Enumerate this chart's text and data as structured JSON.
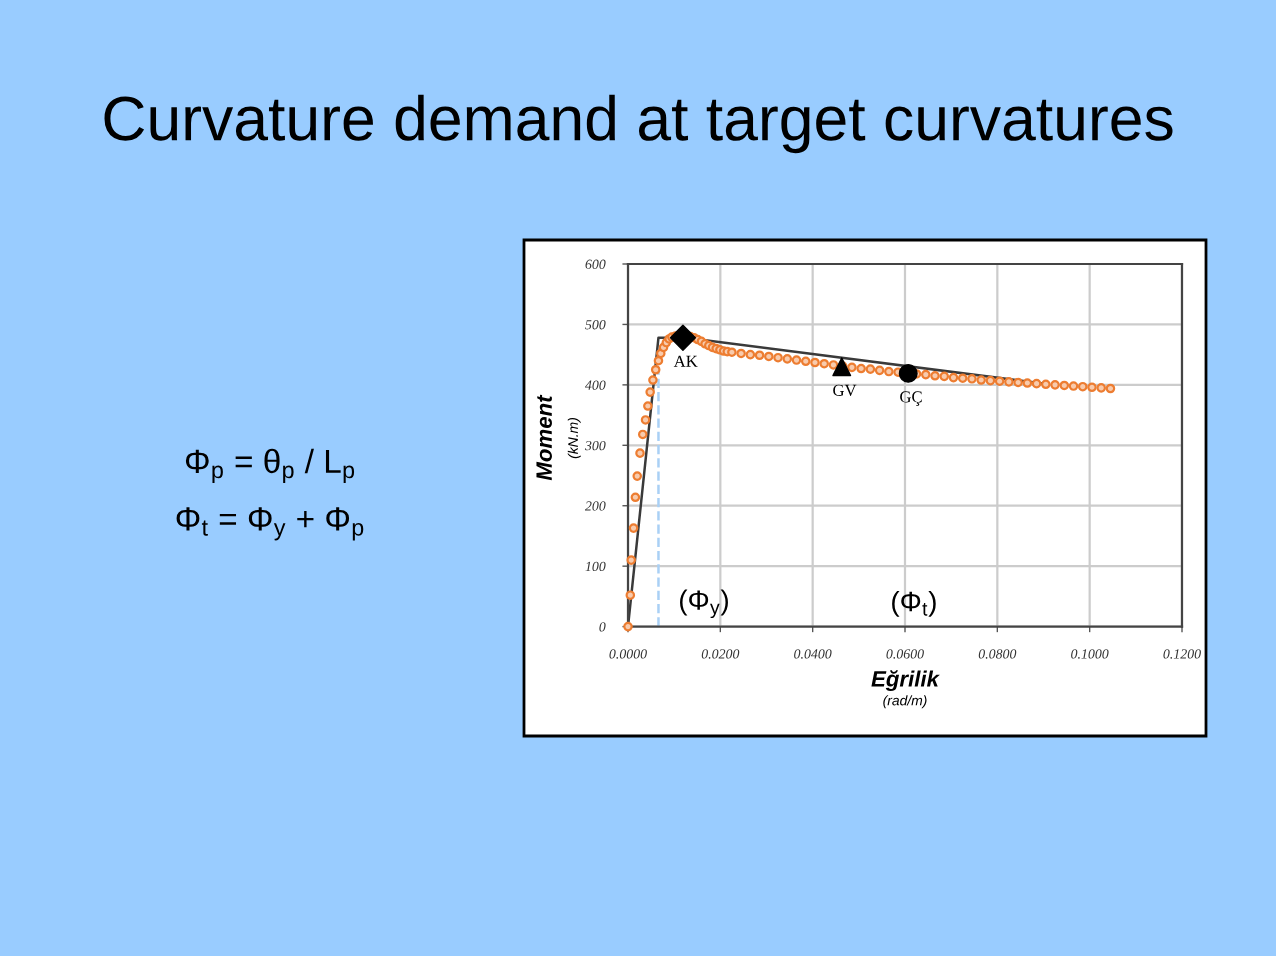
{
  "chart_data": {
    "type": "scatter",
    "title": "Curvature demand at target curvatures",
    "xlabel": "Eğrilik\n(rad/m)",
    "ylabel": "Moment\n(kN.m)",
    "xlim": [
      0,
      0.12
    ],
    "ylim": [
      0,
      600
    ],
    "xticks": [
      {
        "value": 0,
        "label": "0.0000"
      },
      {
        "value": 0.02,
        "label": "0.0200"
      },
      {
        "value": 0.04,
        "label": "0.0400"
      },
      {
        "value": 0.06,
        "label": "0.0600"
      },
      {
        "value": 0.08,
        "label": "0.0800"
      },
      {
        "value": 0.1,
        "label": "0.1000"
      },
      {
        "value": 0.12,
        "label": "0.1200"
      }
    ],
    "yticks": [
      0,
      100,
      200,
      300,
      400,
      500,
      600
    ],
    "grid": true,
    "series": [
      {
        "color": "#ed7d31",
        "marker": "circle",
        "x": [
          0,
          0.0005,
          0.0007,
          0.0012,
          0.0016,
          0.002,
          0.0026,
          0.0032,
          0.0038,
          0.0043,
          0.0048,
          0.0054,
          0.006,
          0.0066,
          0.0071,
          0.0077,
          0.0083,
          0.0089,
          0.0095,
          0.0103,
          0.0135,
          0.0143,
          0.0151,
          0.0159,
          0.0167,
          0.0175,
          0.0183,
          0.0191,
          0.0199,
          0.0207,
          0.0215,
          0.0225,
          0.0245,
          0.0265,
          0.0285,
          0.0305,
          0.0325,
          0.0345,
          0.0365,
          0.0385,
          0.0405,
          0.0425,
          0.0445,
          0.0465,
          0.0485,
          0.0505,
          0.0525,
          0.0545,
          0.0565,
          0.0585,
          0.0625,
          0.0645,
          0.0665,
          0.0685,
          0.0705,
          0.0725,
          0.0745,
          0.0765,
          0.0785,
          0.0805,
          0.0825,
          0.0845,
          0.0865,
          0.0885,
          0.0905,
          0.0925,
          0.0945,
          0.0965,
          0.0985,
          0.1005,
          0.1025,
          0.1045
        ],
        "values": [
          0,
          52,
          110,
          163,
          214,
          249,
          287,
          318,
          342,
          365,
          388,
          408,
          425,
          440,
          452,
          462,
          470,
          476,
          479,
          481,
          480,
          478,
          475,
          472,
          468,
          465,
          462,
          460,
          458,
          456,
          455,
          454,
          452,
          450,
          449,
          447,
          445,
          443,
          441,
          439,
          437,
          435,
          433,
          431,
          429,
          427,
          426,
          424,
          422,
          421,
          418,
          417,
          415,
          414,
          412,
          411,
          410,
          408,
          407,
          406,
          405,
          404,
          403,
          402,
          401,
          400,
          399,
          398,
          397,
          396,
          395,
          394
        ]
      },
      {
        "type": "line",
        "color": "#3a3a3a",
        "marker": "none",
        "line_style": "solid",
        "x": [
          0,
          0.0066,
          0.0125,
          0.09
        ],
        "values": [
          0,
          478,
          478,
          402
        ]
      },
      {
        "type": "line",
        "color": "#a9d0f5",
        "marker": "none",
        "line_style": "dashed",
        "x": [
          0.0066,
          0.0066
        ],
        "values": [
          0,
          430
        ]
      },
      {
        "color": "#000000",
        "marker": "diamond",
        "x": [
          0.0119
        ],
        "values": [
          478
        ]
      },
      {
        "color": "#000000",
        "marker": "triangle",
        "x": [
          0.0463
        ],
        "values": [
          430
        ]
      },
      {
        "color": "#000000",
        "marker": "circle",
        "x": [
          0.0607
        ],
        "values": [
          419
        ]
      }
    ],
    "annotations": [
      "Φ$_{p}$ = θ$_{p}$ / L$_{p}$",
      "Φ$_{t}$ = Φ$_{y}$ + Φ$_{p}$",
      {
        "text": "AK",
        "x": 0.0119,
        "y": 478
      },
      {
        "text": "GV",
        "x": 0.0463,
        "y": 430
      },
      {
        "text": "GÇ",
        "x": 0.0607,
        "y": 419
      },
      "(Φ$_{y}$)",
      "(Φ$_{t}$)"
    ]
  }
}
